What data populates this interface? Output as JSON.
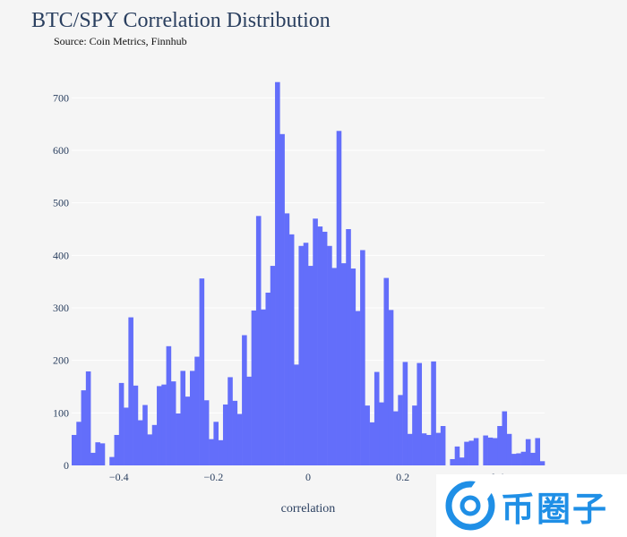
{
  "title": "BTC/SPY Correlation Distribution",
  "subtitle": "Source: Coin Metrics, Finnhub",
  "watermark": "币圈子",
  "colors": {
    "bar": "#636efa",
    "background": "#f5f5f5",
    "grid": "#ffffff",
    "text": "#2a3f5f"
  },
  "chart_data": {
    "type": "bar",
    "title": "BTC/SPY Correlation Distribution",
    "subtitle": "Source: Coin Metrics, Finnhub",
    "xlabel": "correlation",
    "ylabel": "",
    "xlim": [
      -0.5,
      0.5
    ],
    "ylim": [
      0,
      750
    ],
    "xticks": [
      -0.4,
      -0.2,
      0,
      0.2,
      0.4
    ],
    "xtick_labels": [
      "−0.4",
      "−0.2",
      "0",
      "0.2",
      "0.4"
    ],
    "yticks": [
      0,
      100,
      200,
      300,
      400,
      500,
      600,
      700
    ],
    "ytick_labels": [
      "0",
      "100",
      "200",
      "300",
      "400",
      "500",
      "600",
      "700"
    ],
    "grid": true,
    "bin_start": -0.5,
    "bin_width": 0.01,
    "values": [
      58,
      83,
      143,
      179,
      24,
      44,
      42,
      0,
      16,
      58,
      157,
      110,
      282,
      152,
      86,
      115,
      59,
      77,
      151,
      154,
      227,
      160,
      99,
      180,
      131,
      180,
      207,
      356,
      124,
      50,
      83,
      48,
      116,
      168,
      123,
      98,
      248,
      169,
      295,
      475,
      297,
      329,
      380,
      730,
      631,
      480,
      440,
      192,
      418,
      424,
      380,
      470,
      455,
      445,
      418,
      376,
      637,
      385,
      450,
      375,
      294,
      410,
      114,
      82,
      178,
      120,
      357,
      296,
      103,
      134,
      197,
      60,
      114,
      195,
      61,
      58,
      198,
      62,
      75,
      0,
      12,
      36,
      15,
      45,
      47,
      52,
      0,
      57,
      53,
      52,
      75,
      103,
      60,
      22,
      23,
      26,
      50,
      24,
      52,
      8
    ],
    "legend": "none"
  }
}
